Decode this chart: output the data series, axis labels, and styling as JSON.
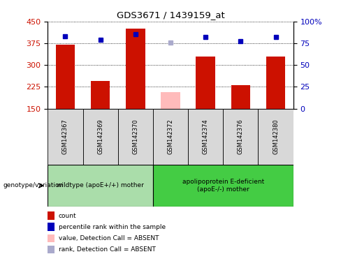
{
  "title": "GDS3671 / 1439159_at",
  "samples": [
    "GSM142367",
    "GSM142369",
    "GSM142370",
    "GSM142372",
    "GSM142374",
    "GSM142376",
    "GSM142380"
  ],
  "counts": [
    370,
    245,
    425,
    207,
    330,
    230,
    330
  ],
  "percentile_ranks": [
    83,
    79,
    85,
    76,
    82,
    77,
    82
  ],
  "absent": [
    false,
    false,
    false,
    true,
    false,
    false,
    false
  ],
  "ylim_left": [
    150,
    450
  ],
  "ylim_right": [
    0,
    100
  ],
  "yticks_left": [
    150,
    225,
    300,
    375,
    450
  ],
  "yticks_right": [
    0,
    25,
    50,
    75,
    100
  ],
  "ytick_labels_right": [
    "0",
    "25",
    "50",
    "75",
    "100%"
  ],
  "bar_color_normal": "#cc1100",
  "bar_color_absent": "#ffbbbb",
  "dot_color_normal": "#0000bb",
  "dot_color_absent": "#aaaacc",
  "group1_label": "wildtype (apoE+/+) mother",
  "group2_label": "apolipoprotein E-deficient\n(apoE-/-) mother",
  "group1_bg": "#aaddaa",
  "group2_bg": "#44cc44",
  "genotype_label": "genotype/variation",
  "legend_items": [
    {
      "label": "count",
      "color": "#cc1100"
    },
    {
      "label": "percentile rank within the sample",
      "color": "#0000bb"
    },
    {
      "label": "value, Detection Call = ABSENT",
      "color": "#ffbbbb"
    },
    {
      "label": "rank, Detection Call = ABSENT",
      "color": "#aaaacc"
    }
  ],
  "bar_width": 0.55,
  "dot_size": 5,
  "figsize": [
    4.88,
    3.84
  ],
  "dpi": 100
}
